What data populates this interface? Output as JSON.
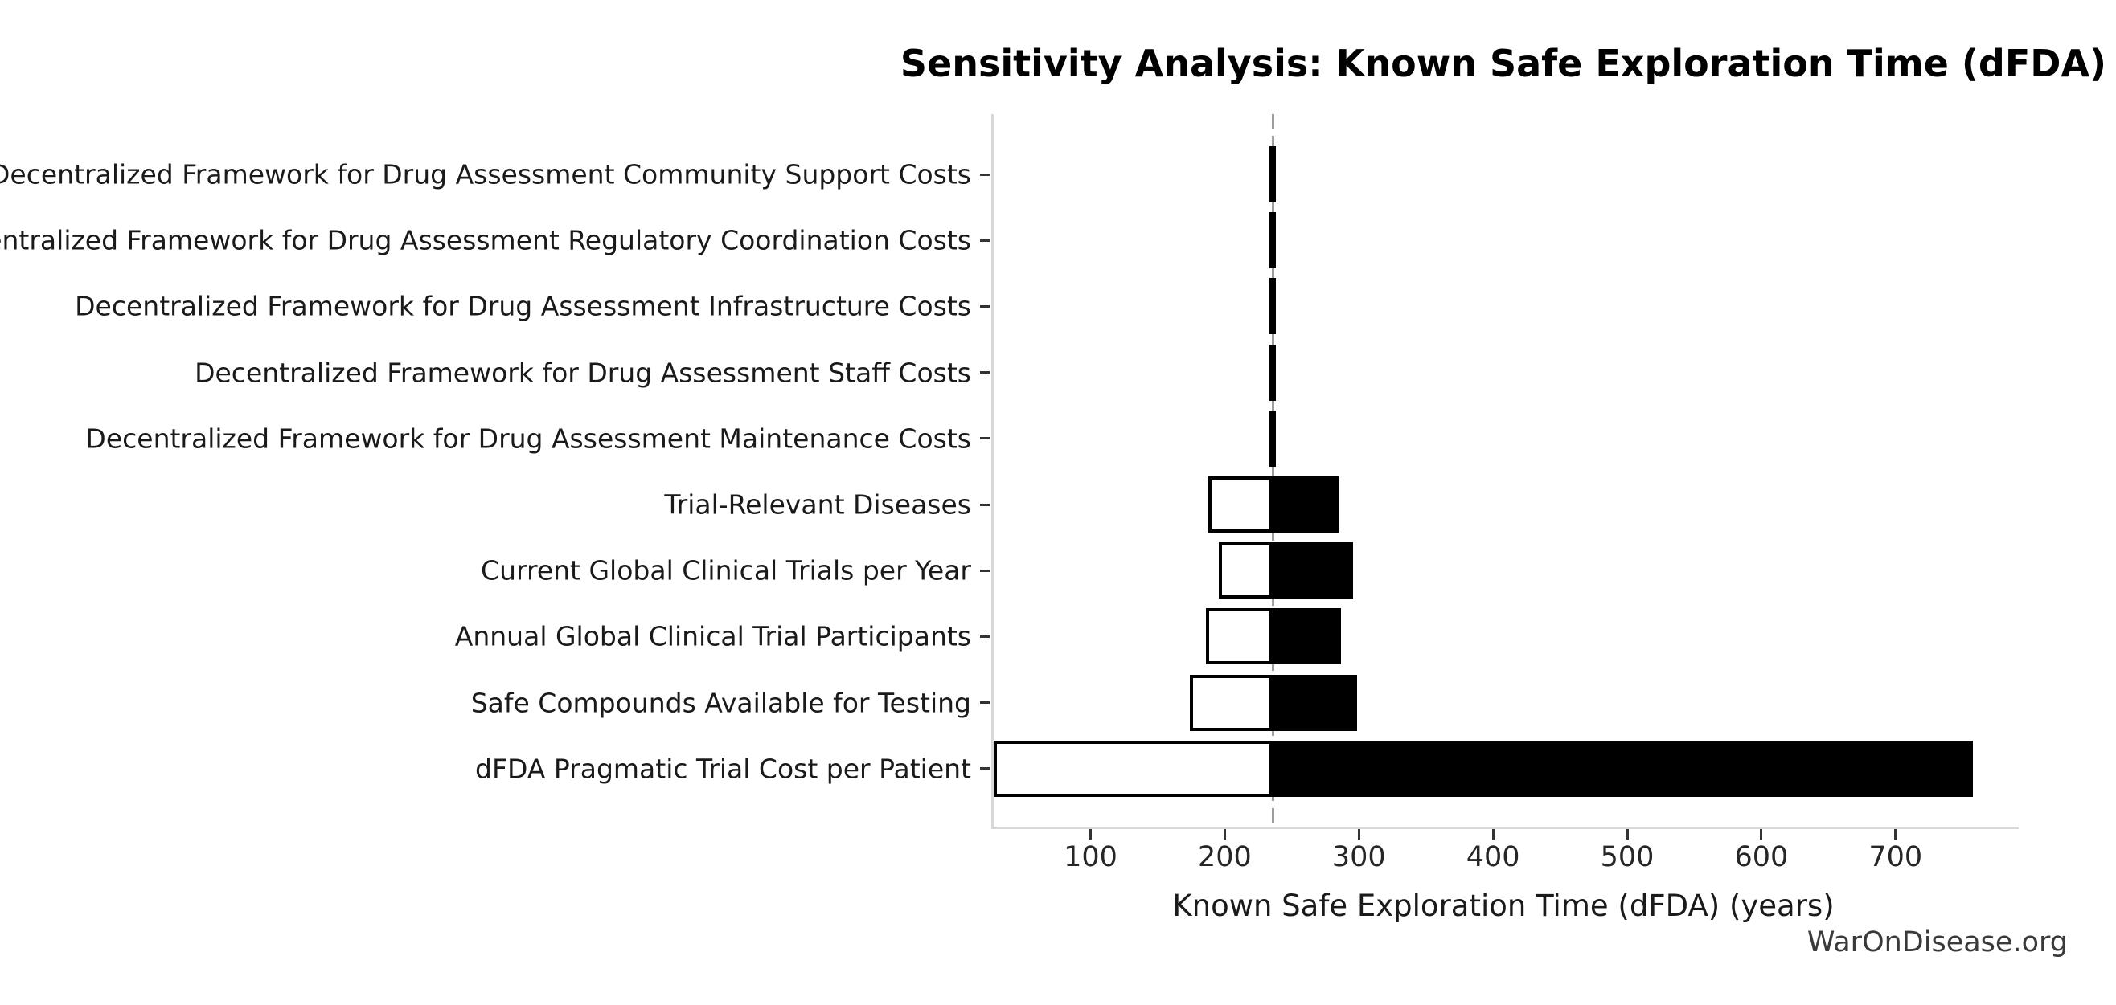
{
  "watermark": "WarOnDisease.org",
  "chart_data": {
    "type": "bar",
    "subtype": "horizontal-tornado-sensitivity",
    "title": "Sensitivity Analysis: Known Safe Exploration Time (dFDA)",
    "xlabel": "Known Safe Exploration Time (dFDA) (years)",
    "ylabel": "",
    "legend": false,
    "grid": false,
    "base_value": 234,
    "xlim": [
      26,
      790
    ],
    "x_ticks": [
      100,
      200,
      300,
      400,
      500,
      600,
      700
    ],
    "categories": [
      "Decentralized Framework for Drug Assessment Community Support Costs",
      "Decentralized Framework for Drug Assessment Regulatory Coordination Costs",
      "Decentralized Framework for Drug Assessment Infrastructure Costs",
      "Decentralized Framework for Drug Assessment Staff Costs",
      "Decentralized Framework for Drug Assessment Maintenance Costs",
      "Trial-Relevant Diseases",
      "Current Global Clinical Trials per Year",
      "Annual Global Clinical Trial Participants",
      "Safe Compounds Available for Testing",
      "dFDA Pragmatic Trial Cost per Patient"
    ],
    "series": [
      {
        "name": "low_value",
        "values": [
          233,
          233,
          233,
          233,
          233,
          186,
          194,
          184,
          172,
          26
        ]
      },
      {
        "name": "high_value",
        "values": [
          235,
          235,
          235,
          235,
          235,
          283,
          294,
          285,
          297,
          756
        ]
      }
    ],
    "colors": {
      "low_fill": "#ffffff",
      "high_fill": "#000000",
      "bar_edge": "#000000",
      "baseline_dash": "#9e9e9e",
      "spine": "#d8d8d8",
      "title_text": "#000000",
      "label_text": "#1a1a1a",
      "watermark_text": "#3a3a3a"
    }
  }
}
